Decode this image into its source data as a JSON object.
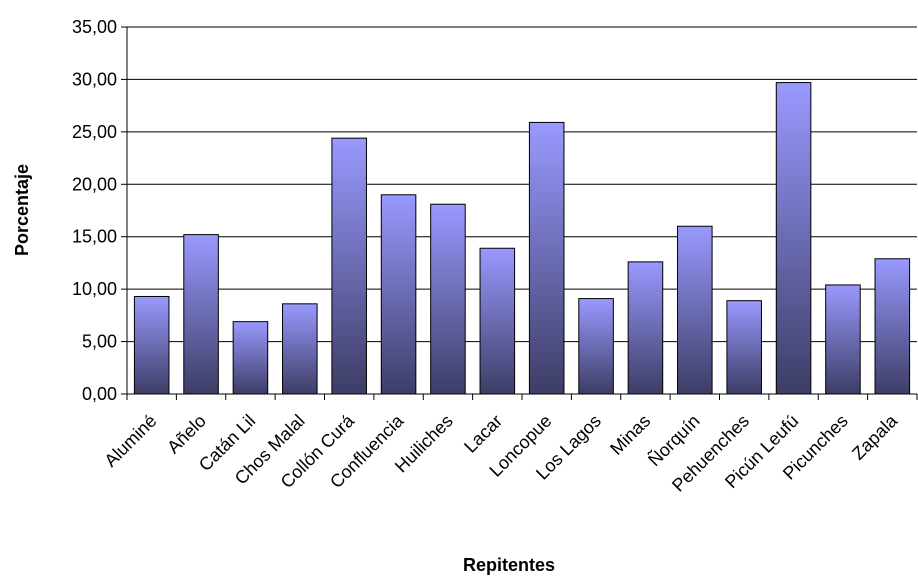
{
  "chart_data": {
    "type": "bar",
    "title": "",
    "xlabel": "Repitentes",
    "ylabel": "Porcentaje",
    "ylim": [
      0,
      35
    ],
    "ytick_values": [
      0,
      5,
      10,
      15,
      20,
      25,
      30,
      35
    ],
    "ytick_labels": [
      "0,00",
      "5,00",
      "10,00",
      "15,00",
      "20,00",
      "25,00",
      "30,00",
      "35,00"
    ],
    "grid": true,
    "legend": "none",
    "colors": {
      "bar_top": "#9999ff",
      "bar_bottom": "#3d3d66",
      "bar_edge": "#000000",
      "grid": "#000000"
    },
    "categories": [
      "Aluminé",
      "Añelo",
      "Catán Lil",
      "Chos Malal",
      "Collón Curá",
      "Confluencia",
      "Huiliches",
      "Lacar",
      "Loncopue",
      "Los Lagos",
      "Minas",
      "Ñorquín",
      "Pehuenches",
      "Picún Leufú",
      "Picunches",
      "Zapala"
    ],
    "values": [
      9.3,
      15.2,
      6.9,
      8.6,
      24.4,
      19.0,
      18.1,
      13.9,
      25.9,
      9.1,
      12.6,
      16.0,
      8.9,
      29.7,
      10.4,
      12.9
    ]
  }
}
